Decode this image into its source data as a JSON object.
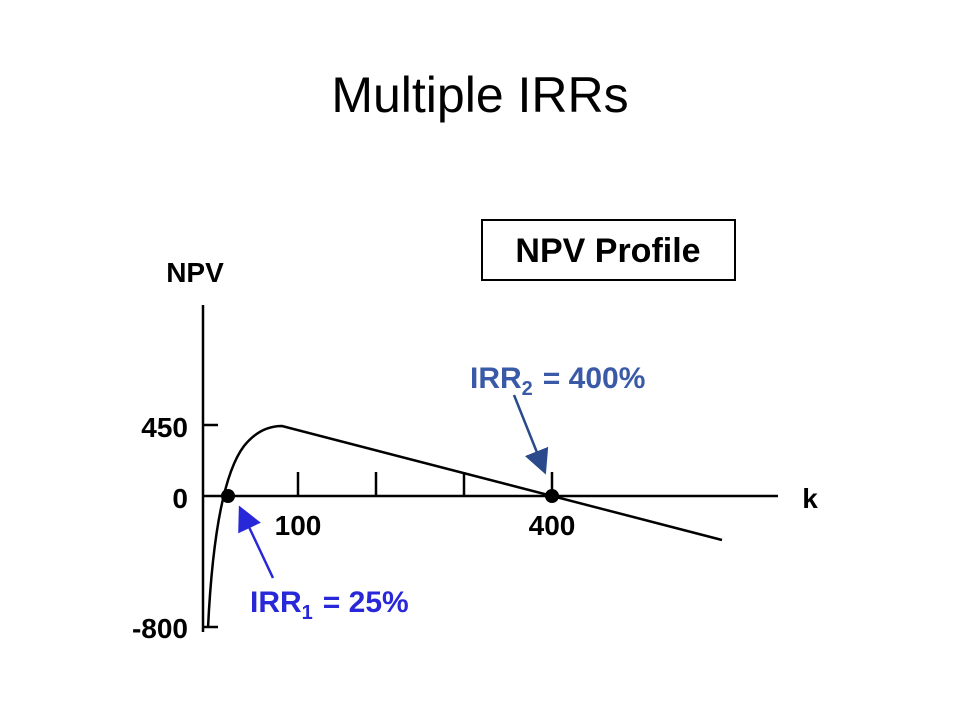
{
  "title": "Multiple IRRs",
  "profile_label": "NPV Profile",
  "y_axis": {
    "label": "NPV",
    "ticks": [
      "450",
      "0",
      "-800"
    ]
  },
  "x_axis": {
    "label": "k",
    "ticks": [
      "100",
      "400"
    ]
  },
  "annotations": [
    {
      "text": "IRR",
      "subscript": "1",
      "rest": "= 25%"
    },
    {
      "text": "IRR",
      "subscript": "2",
      "rest": "= 400%"
    }
  ]
}
